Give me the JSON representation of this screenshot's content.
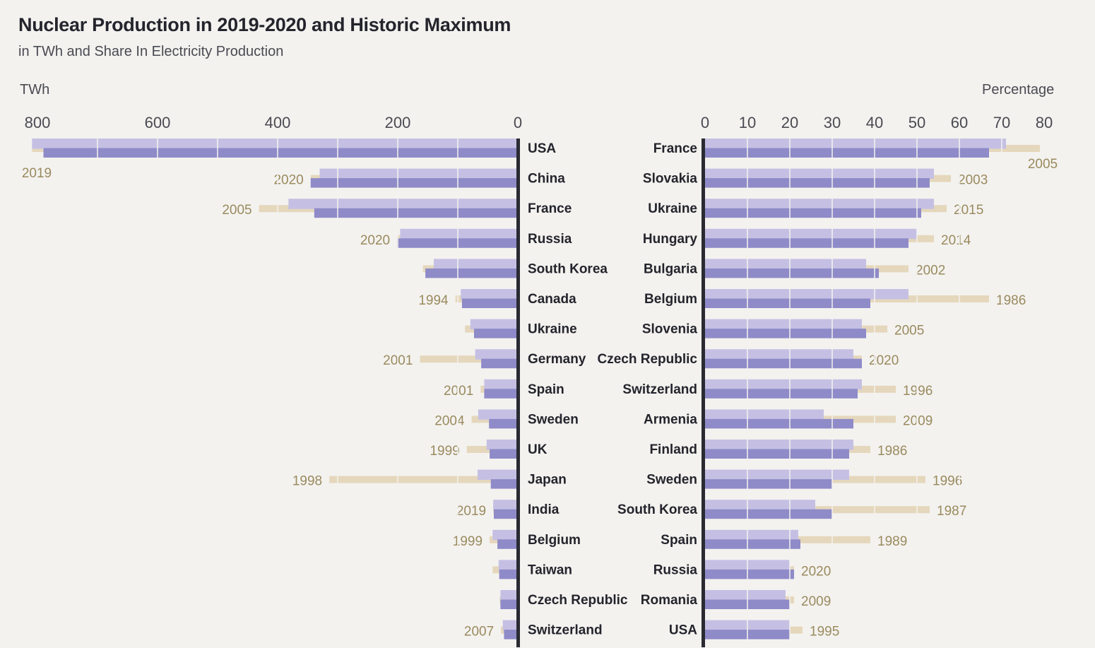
{
  "header": {
    "title": "Nuclear Production in 2019-2020 and Historic Maximum",
    "subtitle": "in TWh and Share In Electricity Production",
    "left_unit": "TWh",
    "right_unit": "Percentage"
  },
  "colors": {
    "y2019": "#c5c0e3",
    "y2020": "#8f8bc8",
    "historic": "#e5d7bc",
    "axis": "#2a2a33",
    "year_label": "#9a8a5e"
  },
  "chart_data": [
    {
      "type": "bar",
      "title": "Nuclear Production (TWh)",
      "xlabel": "TWh",
      "orientation": "horizontal-reversed",
      "xlim": [
        0,
        800
      ],
      "ticks": [
        800,
        600,
        400,
        200,
        0
      ],
      "grid": true,
      "categories": [
        "USA",
        "China",
        "France",
        "Russia",
        "South Korea",
        "Canada",
        "Ukraine",
        "Germany",
        "Spain",
        "Sweden",
        "UK",
        "Japan",
        "India",
        "Belgium",
        "Taiwan",
        "Czech Republic",
        "Switzerland"
      ],
      "series": [
        {
          "name": "2019",
          "values": [
            809,
            330,
            382,
            196,
            140,
            95,
            79,
            71,
            56,
            66,
            52,
            67,
            41,
            42,
            32,
            29,
            25
          ]
        },
        {
          "name": "2020",
          "values": [
            790,
            345,
            339,
            201,
            154,
            93,
            73,
            61,
            56,
            48,
            47,
            45,
            40,
            34,
            31,
            29,
            23
          ]
        },
        {
          "name": "Historic maximum",
          "values": [
            809,
            345,
            431,
            201,
            158,
            104,
            88,
            163,
            62,
            77,
            85,
            314,
            41,
            47,
            42,
            30,
            28
          ]
        }
      ],
      "max_years": [
        "2019",
        "2020",
        "2005",
        "2020",
        "",
        "1994",
        "",
        "2001",
        "2001",
        "2004",
        "1999",
        "1998",
        "2019",
        "1999",
        "",
        "",
        "2007"
      ]
    },
    {
      "type": "bar",
      "title": "Share in Electricity Production (%)",
      "xlabel": "Percentage",
      "xlim": [
        0,
        80
      ],
      "ticks": [
        0,
        10,
        20,
        30,
        40,
        50,
        60,
        70,
        80
      ],
      "grid": true,
      "categories": [
        "France",
        "Slovakia",
        "Ukraine",
        "Hungary",
        "Bulgaria",
        "Belgium",
        "Slovenia",
        "Czech Republic",
        "Switzerland",
        "Armenia",
        "Finland",
        "Sweden",
        "South Korea",
        "Spain",
        "Russia",
        "Romania",
        "USA"
      ],
      "series": [
        {
          "name": "2019",
          "values": [
            71,
            54,
            54,
            50,
            38,
            48,
            37,
            35,
            37,
            28,
            35,
            34,
            26,
            22,
            20,
            19,
            20
          ]
        },
        {
          "name": "2020",
          "values": [
            67,
            53,
            51,
            48,
            41,
            39,
            38,
            37,
            36,
            35,
            34,
            30,
            30,
            22.5,
            21,
            20,
            20
          ]
        },
        {
          "name": "Historic maximum",
          "values": [
            79,
            58,
            57,
            54,
            48,
            67,
            43,
            37,
            45,
            45,
            39,
            52,
            53,
            39,
            21,
            21,
            23
          ]
        }
      ],
      "max_years": [
        "2005",
        "2003",
        "2015",
        "2014",
        "2002",
        "1986",
        "2005",
        "2020",
        "1996",
        "2009",
        "1986",
        "1996",
        "1987",
        "1989",
        "2020",
        "2009",
        "1995"
      ]
    }
  ]
}
